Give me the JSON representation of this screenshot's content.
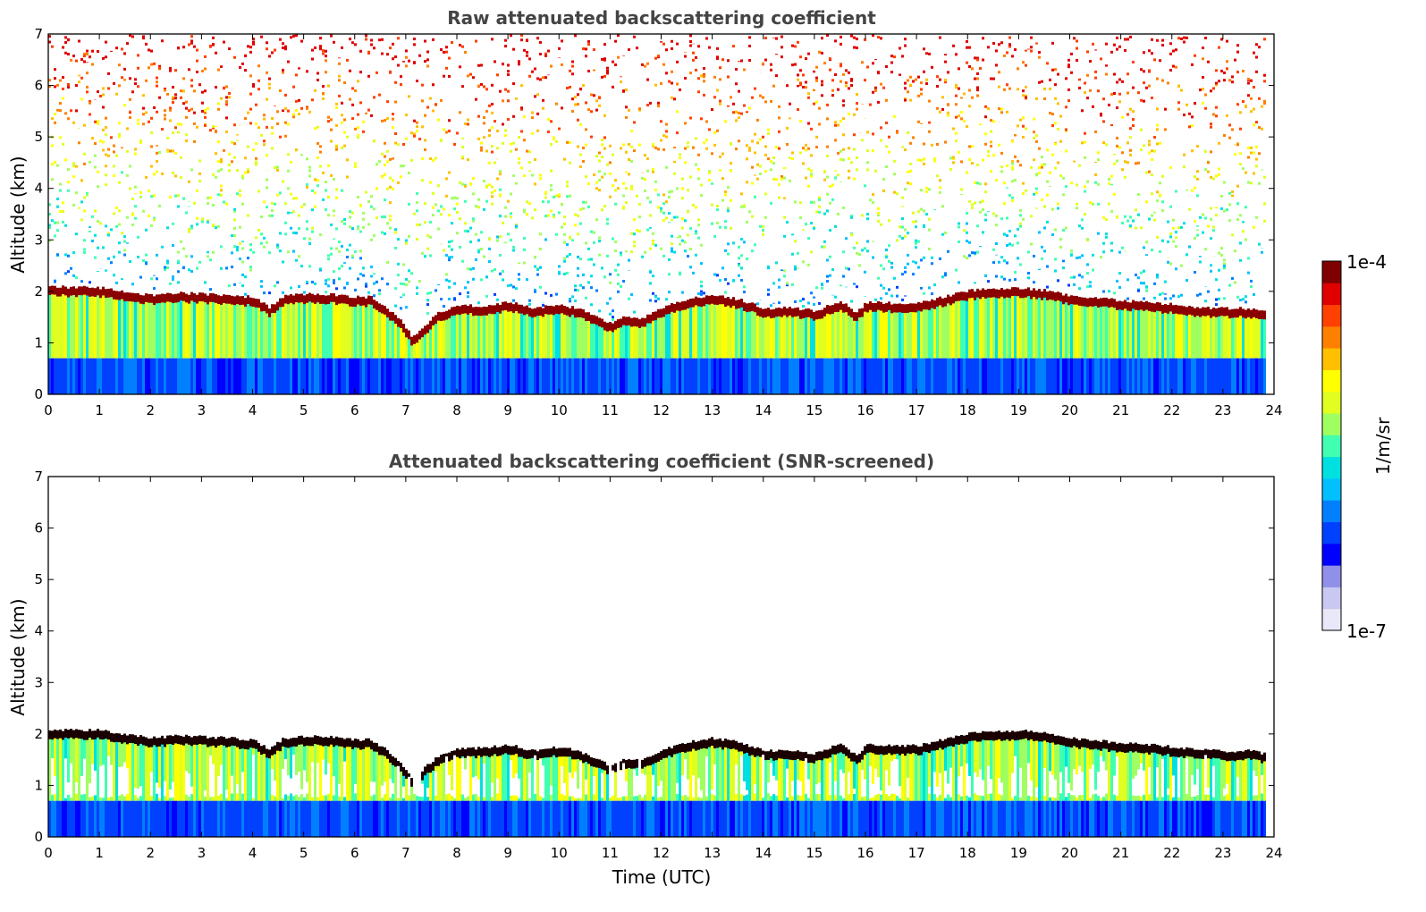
{
  "chart_data": [
    {
      "type": "heatmap",
      "title": "Raw attenuated backscattering coefficient",
      "xlabel": "",
      "ylabel": "Altitude (km)",
      "xlim": [
        0,
        24
      ],
      "ylim": [
        0,
        7
      ],
      "x_ticks": [
        "0",
        "1",
        "2",
        "3",
        "4",
        "5",
        "6",
        "7",
        "8",
        "9",
        "10",
        "11",
        "12",
        "13",
        "14",
        "15",
        "16",
        "17",
        "18",
        "19",
        "20",
        "21",
        "22",
        "23",
        "24"
      ],
      "y_ticks": [
        "0",
        "1",
        "2",
        "3",
        "4",
        "5",
        "6",
        "7"
      ],
      "data_end_hour": 23.8,
      "boundary_layer_top_km": [
        [
          0,
          2.02
        ],
        [
          1,
          2.0
        ],
        [
          1.5,
          1.92
        ],
        [
          2,
          1.85
        ],
        [
          2.5,
          1.9
        ],
        [
          3,
          1.88
        ],
        [
          3.5,
          1.85
        ],
        [
          4,
          1.82
        ],
        [
          4.3,
          1.62
        ],
        [
          4.6,
          1.85
        ],
        [
          5,
          1.88
        ],
        [
          5.5,
          1.87
        ],
        [
          6,
          1.82
        ],
        [
          6.3,
          1.82
        ],
        [
          6.6,
          1.62
        ],
        [
          6.9,
          1.35
        ],
        [
          7.1,
          1.05
        ],
        [
          7.3,
          1.22
        ],
        [
          7.6,
          1.5
        ],
        [
          8,
          1.65
        ],
        [
          8.5,
          1.65
        ],
        [
          9,
          1.72
        ],
        [
          9.5,
          1.6
        ],
        [
          10,
          1.68
        ],
        [
          10.5,
          1.55
        ],
        [
          11,
          1.3
        ],
        [
          11.3,
          1.45
        ],
        [
          11.6,
          1.4
        ],
        [
          12,
          1.62
        ],
        [
          12.5,
          1.78
        ],
        [
          13,
          1.85
        ],
        [
          13.5,
          1.78
        ],
        [
          14,
          1.6
        ],
        [
          14.5,
          1.62
        ],
        [
          15,
          1.55
        ],
        [
          15.5,
          1.75
        ],
        [
          15.8,
          1.5
        ],
        [
          16,
          1.72
        ],
        [
          16.5,
          1.7
        ],
        [
          17,
          1.7
        ],
        [
          17.5,
          1.82
        ],
        [
          18,
          1.95
        ],
        [
          18.5,
          1.98
        ],
        [
          19,
          2.0
        ],
        [
          19.5,
          1.95
        ],
        [
          20,
          1.85
        ],
        [
          20.5,
          1.8
        ],
        [
          21,
          1.75
        ],
        [
          21.5,
          1.72
        ],
        [
          22,
          1.68
        ],
        [
          22.5,
          1.62
        ],
        [
          23,
          1.6
        ],
        [
          23.5,
          1.6
        ],
        [
          23.8,
          1.55
        ]
      ]
    },
    {
      "type": "heatmap",
      "title": "Attenuated backscattering coefficient (SNR-screened)",
      "xlabel": "Time (UTC)",
      "ylabel": "Altitude (km)",
      "xlim": [
        0,
        24
      ],
      "ylim": [
        0,
        7
      ],
      "x_ticks": [
        "0",
        "1",
        "2",
        "3",
        "4",
        "5",
        "6",
        "7",
        "8",
        "9",
        "10",
        "11",
        "12",
        "13",
        "14",
        "15",
        "16",
        "17",
        "18",
        "19",
        "20",
        "21",
        "22",
        "23",
        "24"
      ],
      "y_ticks": [
        "0",
        "1",
        "2",
        "3",
        "4",
        "5",
        "6",
        "7"
      ],
      "data_end_hour": 23.8
    }
  ],
  "colorbar": {
    "label": "1/m/sr",
    "max_label": "1e-4",
    "min_label": "1e-7",
    "scale": "log",
    "colors": [
      "#e8e8f8",
      "#c8c8f0",
      "#9090e8",
      "#0000ff",
      "#0040ff",
      "#0080ff",
      "#00c0ff",
      "#00e0e0",
      "#40ffb0",
      "#a0ff60",
      "#e0ff20",
      "#ffff00",
      "#ffc000",
      "#ff8000",
      "#ff4000",
      "#e00000",
      "#800000"
    ]
  }
}
